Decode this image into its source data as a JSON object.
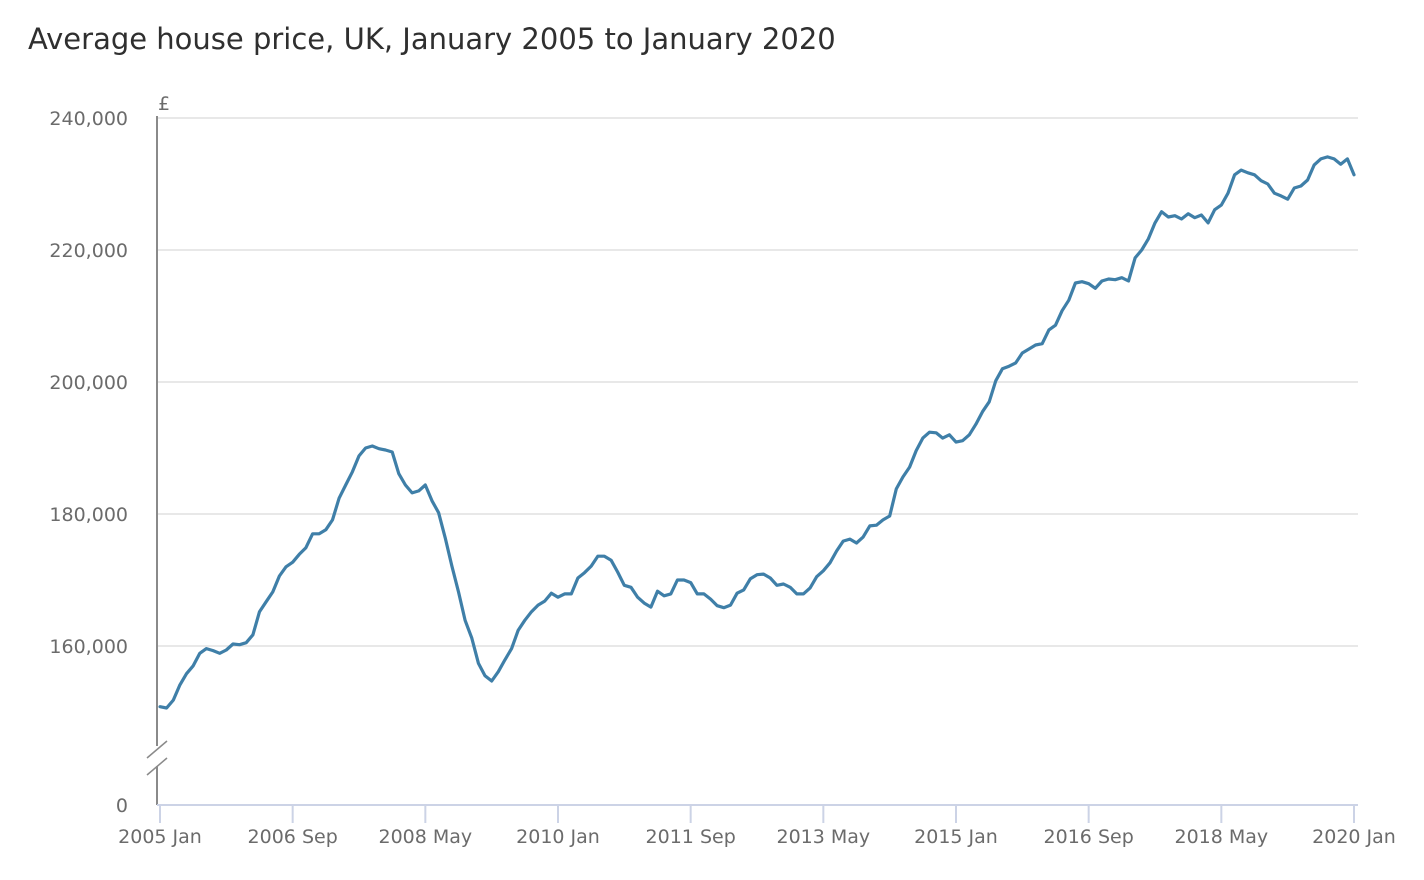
{
  "chart_data": {
    "type": "line",
    "title": "Average house price, UK, January 2005 to January 2020",
    "ylabel": "£",
    "xlabel": "",
    "ylim": [
      150000,
      240000
    ],
    "y_axis_break": true,
    "y_ticks": [
      {
        "value": 240000,
        "label": "240,000"
      },
      {
        "value": 220000,
        "label": "220,000"
      },
      {
        "value": 200000,
        "label": "200,000"
      },
      {
        "value": 180000,
        "label": "180,000"
      },
      {
        "value": 160000,
        "label": "160,000"
      },
      {
        "value": 0,
        "label": "0"
      }
    ],
    "x_start": "2005 Jan",
    "x_frequency": "monthly",
    "x_ticks": [
      {
        "month_index": 0,
        "label": "2005 Jan"
      },
      {
        "month_index": 20,
        "label": "2006 Sep"
      },
      {
        "month_index": 40,
        "label": "2008 May"
      },
      {
        "month_index": 60,
        "label": "2010 Jan"
      },
      {
        "month_index": 80,
        "label": "2011 Sep"
      },
      {
        "month_index": 100,
        "label": "2013 May"
      },
      {
        "month_index": 120,
        "label": "2015 Jan"
      },
      {
        "month_index": 140,
        "label": "2016 Sep"
      },
      {
        "month_index": 160,
        "label": "2018 May"
      },
      {
        "month_index": 180,
        "label": "2020 Jan"
      }
    ],
    "grid": true,
    "series": [
      {
        "name": "Average house price",
        "color": "#3f7fa8",
        "values": [
          150800,
          150600,
          151800,
          154100,
          155800,
          157000,
          158900,
          159600,
          159300,
          158900,
          159400,
          160300,
          160200,
          160500,
          161700,
          165200,
          166700,
          168200,
          170600,
          172000,
          172700,
          173900,
          174900,
          177000,
          177000,
          177600,
          179100,
          182400,
          184400,
          186400,
          188800,
          190000,
          190300,
          189900,
          189700,
          189400,
          186100,
          184400,
          183200,
          183500,
          184400,
          182000,
          180200,
          176400,
          172100,
          168200,
          163900,
          161200,
          157400,
          155500,
          154700,
          156100,
          157900,
          159600,
          162400,
          163900,
          165200,
          166200,
          166800,
          168000,
          167400,
          167900,
          167900,
          170300,
          171100,
          172100,
          173600,
          173600,
          173000,
          171200,
          169200,
          168900,
          167400,
          166500,
          165900,
          168300,
          167600,
          167900,
          170000,
          170000,
          169600,
          167900,
          167900,
          167100,
          166100,
          165800,
          166200,
          168000,
          168500,
          170200,
          170800,
          170900,
          170300,
          169200,
          169400,
          168900,
          167900,
          167900,
          168800,
          170500,
          171400,
          172600,
          174400,
          175900,
          176200,
          175600,
          176500,
          178200,
          178300,
          179100,
          179700,
          183800,
          185600,
          187100,
          189600,
          191500,
          192400,
          192300,
          191500,
          192000,
          190900,
          191100,
          192000,
          193600,
          195500,
          197000,
          200200,
          202000,
          202400,
          202900,
          204400,
          205000,
          205600,
          205800,
          207900,
          208600,
          210800,
          212400,
          215000,
          215200,
          214900,
          214200,
          215300,
          215600,
          215500,
          215800,
          215300,
          218800,
          220000,
          221700,
          224100,
          225800,
          225000,
          225200,
          224700,
          225500,
          224900,
          225300,
          224100,
          226100,
          226800,
          228600,
          231400,
          232100,
          231700,
          231400,
          230500,
          230000,
          228600,
          228200,
          227700,
          229400,
          229700,
          230600,
          232900,
          233800,
          234100,
          233800,
          233000,
          233800,
          231400
        ]
      }
    ]
  }
}
